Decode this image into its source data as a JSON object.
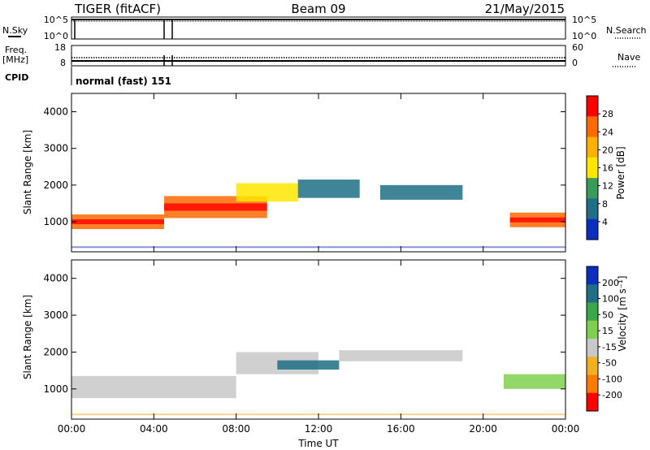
{
  "header": {
    "title": "TIGER (fitACF)",
    "beam": "Beam 09",
    "date": "21/May/2015"
  },
  "strips": {
    "nsky": {
      "label": "N.Sky",
      "ticks_left": [
        "10^5",
        "10^0"
      ],
      "ticks_right": [
        "10^5",
        "10^0"
      ],
      "right_label": "N.Search"
    },
    "freq": {
      "label_lines": [
        "Freq.",
        "[MHz]"
      ],
      "ticks_left": [
        "18",
        "8"
      ],
      "ticks_right": [
        "60",
        "0"
      ],
      "right_label": "Nave"
    },
    "cpid": {
      "label": "CPID",
      "value": "normal (fast) 151"
    }
  },
  "chart_data": [
    {
      "type": "heatmap",
      "panel": "power",
      "ylabel": "Slant Range [km]",
      "ylim": [
        180,
        4500
      ],
      "yticks": [
        1000,
        2000,
        3000,
        4000
      ],
      "xlim": [
        0,
        24
      ],
      "colorbar": {
        "label": "Power [dB]",
        "ticks": [
          "28",
          "24",
          "20",
          "16",
          "12",
          "8",
          "4"
        ],
        "colors": [
          "#ff0000",
          "#ff6a00",
          "#ffb000",
          "#ffe600",
          "#3a9a5a",
          "#1f6e86",
          "#0a2fbf"
        ]
      },
      "echo_bands": [
        {
          "start_h": 0.0,
          "end_h": 4.5,
          "center_km": 1000,
          "width_km": 400,
          "level": "strong"
        },
        {
          "start_h": 4.5,
          "end_h": 9.5,
          "center_km": 1400,
          "width_km": 600,
          "level": "strong"
        },
        {
          "start_h": 8.0,
          "end_h": 11.0,
          "center_km": 1800,
          "width_km": 500,
          "level": "medium"
        },
        {
          "start_h": 11.0,
          "end_h": 14.0,
          "center_km": 1900,
          "width_km": 500,
          "level": "weak"
        },
        {
          "start_h": 15.0,
          "end_h": 19.0,
          "center_km": 1800,
          "width_km": 400,
          "level": "weak"
        },
        {
          "start_h": 21.3,
          "end_h": 24.0,
          "center_km": 1050,
          "width_km": 400,
          "level": "strong"
        }
      ]
    },
    {
      "type": "heatmap",
      "panel": "velocity",
      "ylabel": "Slant Range [km]",
      "xlabel": "Time UT",
      "ylim": [
        180,
        4500
      ],
      "yticks": [
        1000,
        2000,
        3000,
        4000
      ],
      "xlim": [
        0,
        24
      ],
      "xticks": [
        "00:00",
        "04:00",
        "08:00",
        "12:00",
        "16:00",
        "20:00",
        "00:00"
      ],
      "colorbar": {
        "label": "Velocity [m s⁻¹]",
        "ticks": [
          "200",
          "100",
          "50",
          "15",
          "-15",
          "-50",
          "-100",
          "-200"
        ],
        "colors": [
          "#0a2fbf",
          "#1f6e86",
          "#3aa84a",
          "#7fd050",
          "#c8c8c8",
          "#f0b020",
          "#ff7a00",
          "#ff0000"
        ]
      },
      "echo_bands": [
        {
          "start_h": 0.0,
          "end_h": 8.0,
          "center_km": 1050,
          "width_km": 600,
          "velocity": "-15..15"
        },
        {
          "start_h": 8.0,
          "end_h": 12.0,
          "center_km": 1700,
          "width_km": 600,
          "velocity": "-15..15"
        },
        {
          "start_h": 10.0,
          "end_h": 13.0,
          "center_km": 1650,
          "width_km": 250,
          "velocity": "100..200"
        },
        {
          "start_h": 13.0,
          "end_h": 19.0,
          "center_km": 1900,
          "width_km": 300,
          "velocity": "-15..15"
        },
        {
          "start_h": 21.0,
          "end_h": 24.0,
          "center_km": 1200,
          "width_km": 400,
          "velocity": "15..50"
        }
      ]
    }
  ]
}
